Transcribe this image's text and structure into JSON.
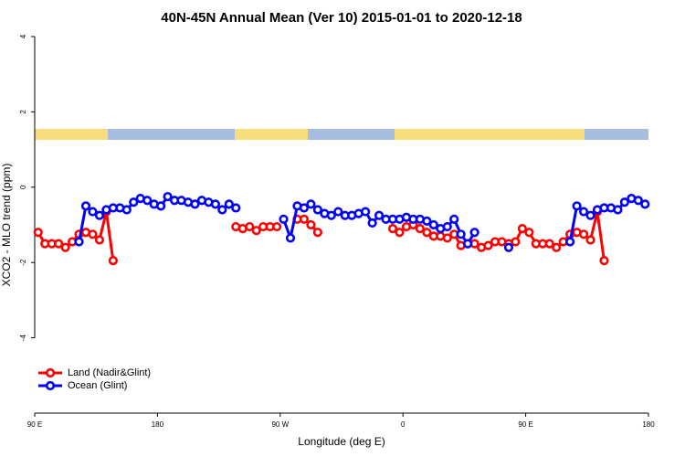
{
  "chart_data": {
    "type": "line",
    "title": "40N-45N Annual Mean (Ver 10)   2015-01-01 to 2020-12-18",
    "x_label": "Longitude (deg E)",
    "y_label": "XCO2 - MLO trend (ppm)",
    "xlim": [
      90,
      540
    ],
    "ylim": [
      -6,
      4
    ],
    "xticks": [
      {
        "value": 90,
        "label": "90 E"
      },
      {
        "value": 180,
        "label": "180"
      },
      {
        "value": 270,
        "label": "90 W"
      },
      {
        "value": 360,
        "label": "0"
      },
      {
        "value": 450,
        "label": "90 E"
      },
      {
        "value": 540,
        "label": "180"
      }
    ],
    "yticks": [
      -4,
      -2,
      0,
      2,
      4
    ],
    "legend": "bottomleft",
    "x": [
      92.5,
      97.5,
      102.5,
      107.5,
      112.5,
      117.5,
      122.5,
      127.5,
      132.5,
      137.5,
      142.5,
      147.5,
      152.5,
      157.5,
      162.5,
      167.5,
      172.5,
      177.5,
      182.5,
      187.5,
      192.5,
      197.5,
      202.5,
      207.5,
      212.5,
      217.5,
      222.5,
      227.5,
      232.5,
      237.5,
      242.5,
      247.5,
      252.5,
      257.5,
      262.5,
      267.5,
      272.5,
      277.5,
      282.5,
      287.5,
      292.5,
      297.5,
      302.5,
      307.5,
      312.5,
      317.5,
      322.5,
      327.5,
      332.5,
      337.5,
      342.5,
      347.5,
      352.5,
      357.5,
      362.5,
      367.5,
      372.5,
      377.5,
      382.5,
      387.5,
      392.5,
      397.5,
      402.5,
      407.5,
      412.5,
      417.5,
      422.5,
      427.5,
      432.5,
      437.5,
      442.5,
      447.5,
      452.5,
      457.5,
      462.5,
      467.5,
      472.5,
      477.5,
      482.5,
      487.5,
      492.5,
      497.5,
      502.5,
      507.5,
      512.5,
      517.5,
      522.5,
      527.5,
      532.5,
      537.5
    ],
    "series": [
      {
        "name": "Land (Nadir&Glint)",
        "color": "#ff0000",
        "values": [
          -1.2,
          -1.5,
          -1.5,
          -1.5,
          -1.6,
          -1.45,
          -1.25,
          -1.2,
          -1.25,
          -1.4,
          -0.65,
          -1.95,
          null,
          null,
          null,
          null,
          null,
          null,
          null,
          null,
          null,
          null,
          null,
          null,
          null,
          null,
          null,
          null,
          null,
          -1.05,
          -1.1,
          -1.05,
          -1.15,
          -1.05,
          -1.05,
          -1.05,
          null,
          null,
          -0.85,
          -0.85,
          -1.0,
          -1.2,
          null,
          null,
          null,
          null,
          null,
          null,
          null,
          null,
          null,
          null,
          -1.1,
          -1.2,
          -1.05,
          -1.0,
          -1.1,
          -1.2,
          -1.3,
          -1.3,
          -1.35,
          -1.25,
          -1.55,
          -1.5,
          -1.5,
          -1.6,
          -1.55,
          -1.45,
          -1.45,
          -1.5,
          -1.45,
          -1.1,
          -1.2,
          -1.5,
          -1.5,
          -1.5,
          -1.6,
          -1.45,
          -1.25,
          -1.2,
          -1.25,
          -1.4,
          -0.65,
          -1.95,
          null,
          null,
          null,
          null,
          null,
          null
        ]
      },
      {
        "name": "Ocean (Glint)",
        "color": "#0000ff",
        "values": [
          null,
          null,
          null,
          null,
          null,
          null,
          -1.45,
          -0.5,
          -0.65,
          -0.75,
          -0.6,
          -0.55,
          -0.55,
          -0.6,
          -0.4,
          -0.3,
          -0.35,
          -0.45,
          -0.5,
          -0.25,
          -0.35,
          -0.35,
          -0.4,
          -0.45,
          -0.35,
          -0.4,
          -0.45,
          -0.6,
          -0.45,
          -0.55,
          null,
          null,
          null,
          null,
          null,
          null,
          -0.85,
          -1.35,
          -0.5,
          -0.55,
          -0.45,
          -0.6,
          -0.7,
          -0.75,
          -0.65,
          -0.75,
          -0.75,
          -0.7,
          -0.65,
          -0.95,
          -0.75,
          -0.85,
          -0.85,
          -0.85,
          -0.8,
          -0.85,
          -0.85,
          -0.9,
          -1.0,
          -1.1,
          -1.05,
          -0.85,
          -1.25,
          -1.5,
          -1.2,
          null,
          null,
          null,
          null,
          -1.6,
          null,
          null,
          null,
          null,
          null,
          null,
          null,
          null,
          -1.45,
          -0.5,
          -0.65,
          -0.75,
          -0.6,
          -0.55,
          -0.55,
          -0.6,
          -0.4,
          -0.3,
          -0.35,
          -0.45
        ]
      }
    ]
  }
}
